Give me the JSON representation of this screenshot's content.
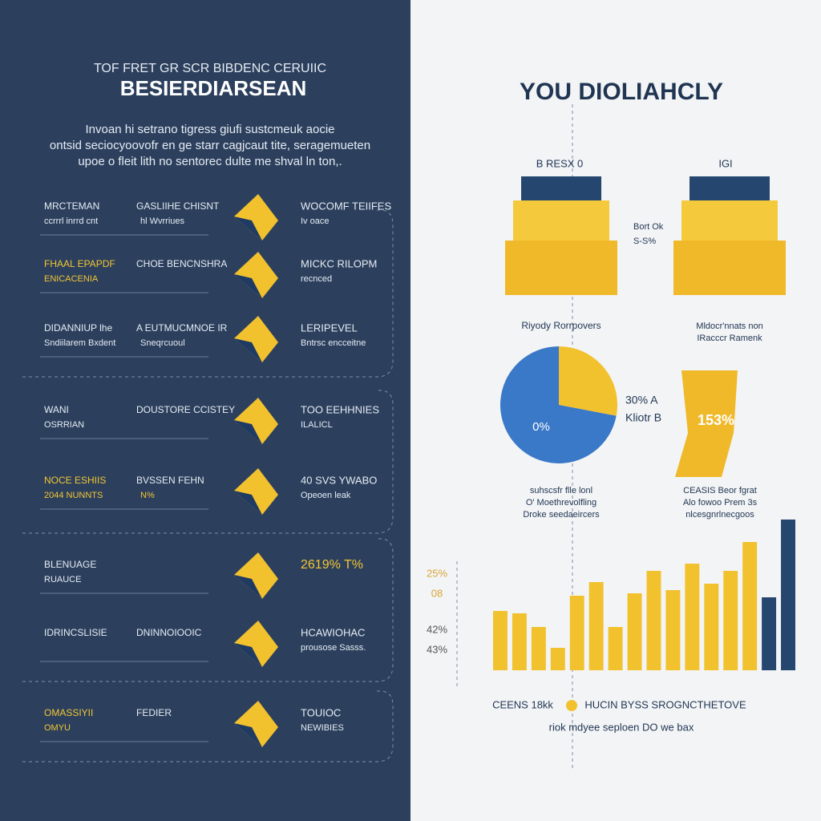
{
  "left": {
    "kicker": "TOF FRET GR SCR BIBDENC CERUIIC",
    "title": "BESIERDIARSEAN",
    "intro": [
      "Invoan hi setrano tigress giufi sustcmeuk aocie",
      "ontsid seciocyoovofr en ge starr cagjcaut tite, seragemueten",
      "upoe o fleit lith no sentorec dulte me shval ln ton,."
    ],
    "rows": [
      {
        "label": "MRCTEMAN",
        "sub": "ccrrrl inrrd cnt",
        "mid": "GASLIIHE CHISNT",
        "mid_sub": "hl Wvrriues",
        "title": "WOCOMF TEIIFES",
        "note": "Iv oace"
      },
      {
        "label": "FHAAL EPAPDF",
        "sub": "ENICACENIA",
        "mid": "CHOE BENCNSHRA",
        "mid_sub": "",
        "title": "MICKC RILOPM",
        "note": "recnced"
      },
      {
        "label": "DIDANNIUP lhe",
        "sub": "Sndiilarem Bxdent",
        "mid": "A EUTMUCMNOE IR",
        "mid_sub": "Sneqrcuoul",
        "title": "LERIPEVEL",
        "note": "Bntrsc encceitne"
      },
      {
        "label": "WANI",
        "sub": "OSRRIAN",
        "mid": "DOUSTORE CCISTEY",
        "mid_sub": "",
        "title": "TOO EEHHNIES",
        "note": "ILALICL"
      },
      {
        "label": "NOCE ESHIIS",
        "sub": "2044 NUNNTS",
        "mid": "BVSSEN FEHN",
        "mid_sub": "N%",
        "title": "40 SVS YWABO",
        "note": "Opeoen leak"
      },
      {
        "label": "BLENUAGE",
        "sub": "RUAUCE",
        "mid": "",
        "mid_sub": "",
        "title": "2619% T%",
        "note": ""
      },
      {
        "label": "IDRINCSLISIE",
        "sub": "",
        "mid": "DNINNOIOOIC",
        "mid_sub": "",
        "title": "HCAWIOHAC",
        "note": "prousose Sasss."
      },
      {
        "label": "OMASSIYII",
        "sub": "OMYU",
        "mid": "FEDIER",
        "mid_sub": "",
        "title": "TOUIOC",
        "note": "NEWIBIES"
      }
    ]
  },
  "right": {
    "title": "YOU DIOLIAHCLY",
    "cube_a": "B RESX 0",
    "cube_b": "IGI",
    "cube_note": [
      "Bort Ok",
      "S-S%"
    ],
    "cube_a_caption": "Riyody Rorrpovers",
    "cube_b_caption": [
      "Mldocr'nnats non",
      "IRacccr Ramenk"
    ],
    "pie_labels": [
      "30% A",
      "Kliotr B"
    ],
    "pie_center": "0%",
    "tag": "153%",
    "pie_caption": [
      "suhscsfr flle lonl",
      "O' Moethrevolfling",
      "Droke seedaeircers"
    ],
    "tag_caption": [
      "CEASIS Beor fgrat",
      "Alo fowoo Prem 3s",
      "nlcesgnrlnecgoos"
    ],
    "bar_labels": [
      "25%",
      "08",
      "42%",
      "43%"
    ],
    "footer": [
      "CEENS 18kk",
      "HUCIN BYSS SROGNCTHETOVE",
      "riok  mdyee seploen DO we bax"
    ]
  },
  "chart_data": [
    {
      "type": "pie",
      "values": [
        72,
        28
      ],
      "colors": [
        "#3a78c8",
        "#f2c12e"
      ]
    },
    {
      "type": "bar",
      "values": [
        74,
        71,
        54,
        28,
        93,
        110,
        54,
        96,
        124,
        100,
        133,
        108,
        124,
        160,
        91,
        188
      ],
      "colors": [
        "#f2c12e",
        "#f2c12e",
        "#f2c12e",
        "#f2c12e",
        "#f2c12e",
        "#f2c12e",
        "#f2c12e",
        "#f2c12e",
        "#f2c12e",
        "#f2c12e",
        "#f2c12e",
        "#f2c12e",
        "#f2c12e",
        "#f2c12e",
        "#24466f",
        "#24466f"
      ],
      "ylim": [
        0,
        200
      ]
    }
  ]
}
